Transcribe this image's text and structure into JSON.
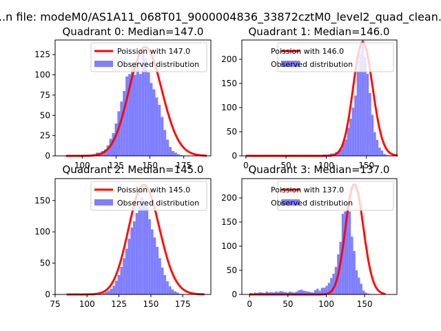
{
  "figure": {
    "suptitle": "...n file: modeM0/AS1A11_068T01_9000004836_33872cztM0_level2_quad_clean..."
  },
  "style": {
    "hist_color": "#7f7fff",
    "line_color": "#ff0000",
    "axis_color": "#000000"
  },
  "chart_data": [
    {
      "type": "bar",
      "title": "Quadrant 0: Median=147.0",
      "xlim": [
        80,
        195
      ],
      "ylim": [
        0,
        143
      ],
      "xticks": [
        100,
        125,
        150,
        175
      ],
      "yticks": [
        0,
        25,
        50,
        75,
        100,
        125
      ],
      "hist": {
        "name": "Observed distribution",
        "start": 88,
        "bin_width": 2,
        "values": [
          0,
          0,
          0,
          0,
          0,
          0,
          0,
          0,
          1,
          1,
          2,
          4,
          4,
          6,
          8,
          13,
          21,
          28,
          40,
          55,
          67,
          80,
          98,
          101,
          115,
          100,
          117,
          101,
          130,
          120,
          103,
          90,
          82,
          72,
          63,
          48,
          32,
          20,
          11,
          6,
          4,
          2,
          1,
          0,
          0,
          0,
          0,
          0,
          0,
          0,
          0,
          0
        ]
      },
      "poisson": {
        "name": "Poission with 147.0",
        "mean": 147,
        "peak": 134
      }
    },
    {
      "type": "bar",
      "title": "Quadrant 1: Median=146.0",
      "xlim": [
        -5,
        188
      ],
      "ylim": [
        0,
        240
      ],
      "xticks": [
        0,
        50,
        100,
        150
      ],
      "yticks": [
        0,
        50,
        100,
        150,
        200
      ],
      "hist": {
        "name": "Observed distribution",
        "start": 0,
        "bin_width": 3,
        "values": [
          0,
          0,
          0,
          0,
          0,
          0,
          0,
          0,
          0,
          0,
          0,
          0,
          0,
          0,
          0,
          0,
          0,
          1,
          0,
          2,
          0,
          1,
          1,
          1,
          0,
          1,
          2,
          1,
          1,
          1,
          1,
          2,
          3,
          2,
          3,
          5,
          5,
          8,
          11,
          14,
          27,
          34,
          58,
          77,
          100,
          125,
          175,
          210,
          240,
          205,
          170,
          130,
          85,
          49,
          33,
          17,
          11,
          4,
          2,
          1,
          0,
          0,
          0
        ]
      },
      "poisson": {
        "name": "Poission with 146.0",
        "mean": 146,
        "peak": 235
      }
    },
    {
      "type": "bar",
      "title": "Quadrant 2: Median=145.0",
      "xlim": [
        75,
        197
      ],
      "ylim": [
        0,
        185
      ],
      "xticks": [
        75,
        100,
        125,
        150,
        175
      ],
      "yticks": [
        0,
        50,
        100,
        150
      ],
      "hist": {
        "name": "Observed distribution",
        "start": 84,
        "bin_width": 2,
        "values": [
          0,
          0,
          0,
          0,
          0,
          0,
          0,
          0,
          0,
          0,
          0,
          0,
          0,
          0,
          2,
          4,
          6,
          9,
          14,
          22,
          31,
          44,
          58,
          73,
          89,
          107,
          117,
          130,
          144,
          155,
          150,
          140,
          120,
          104,
          91,
          76,
          58,
          43,
          31,
          21,
          13,
          8,
          5,
          3,
          1,
          0,
          0,
          0,
          0,
          0,
          0,
          0,
          0,
          0
        ]
      },
      "poisson": {
        "name": "Poission with 145.0",
        "mean": 145,
        "peak": 175
      }
    },
    {
      "type": "bar",
      "title": "Quadrant 3: Median=137.0",
      "xlim": [
        -10,
        192
      ],
      "ylim": [
        0,
        240
      ],
      "xticks": [
        0,
        50,
        100,
        150
      ],
      "yticks": [
        0,
        50,
        100,
        150,
        200
      ],
      "hist": {
        "name": "Observed distribution",
        "start": 0,
        "bin_width": 3,
        "values": [
          3,
          2,
          4,
          3,
          5,
          4,
          3,
          6,
          4,
          5,
          4,
          6,
          5,
          7,
          6,
          5,
          4,
          6,
          5,
          4,
          6,
          9,
          10,
          8,
          7,
          6,
          5,
          4,
          9,
          12,
          8,
          14,
          14,
          18,
          24,
          34,
          43,
          57,
          83,
          109,
          167,
          172,
          180,
          172,
          120,
          90,
          50,
          35,
          22,
          8,
          4,
          2,
          1,
          0,
          0,
          0,
          0,
          0,
          0
        ]
      },
      "poisson": {
        "name": "Poission with 137.0",
        "mean": 137,
        "peak": 228
      }
    }
  ]
}
